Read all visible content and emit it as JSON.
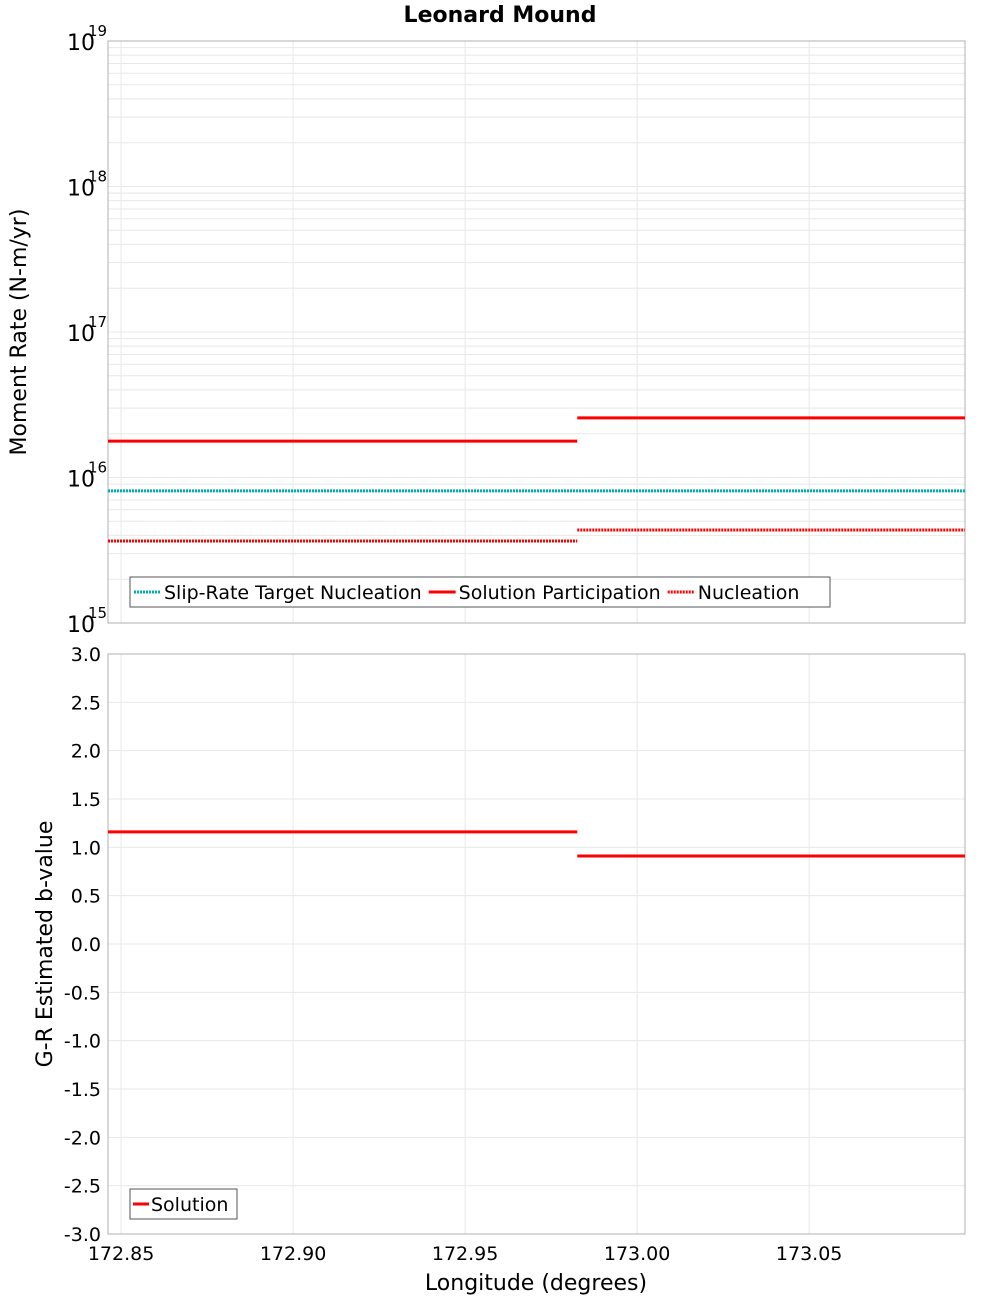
{
  "chart_data": [
    {
      "type": "line",
      "title": "Leonard Mound",
      "xlabel": "Longitude (degrees)",
      "ylabel": "Moment Rate (N-m/yr)",
      "yscale": "log",
      "ylim": [
        1000000000000000.0,
        1e+19
      ],
      "xlim": [
        172.8462,
        173.0953
      ],
      "ytick_labels": [
        {
          "base": "10",
          "exp": "15",
          "value": 1000000000000000.0
        },
        {
          "base": "10",
          "exp": "16",
          "value": 1e+16
        },
        {
          "base": "10",
          "exp": "17",
          "value": 1e+17
        },
        {
          "base": "10",
          "exp": "18",
          "value": 1e+18
        },
        {
          "base": "10",
          "exp": "19",
          "value": 1e+19
        }
      ],
      "grid": true,
      "legend_position": "bottom-left",
      "series": [
        {
          "name": "Slip-Rate Target Nucleation",
          "color": "#00b0b0",
          "style": "dotted",
          "segments": [
            {
              "x": [
                172.8462,
                173.0953
              ],
              "y": 8100000000000000.0
            }
          ]
        },
        {
          "name": "Solution Participation",
          "color": "#ff0000",
          "style": "solid",
          "segments": [
            {
              "x": [
                172.8462,
                172.9826
              ],
              "y": 1.78e+16
            },
            {
              "x": [
                172.9826,
                173.0953
              ],
              "y": 2.57e+16
            }
          ]
        },
        {
          "name": "Nucleation",
          "color": "#ff0000",
          "style": "dotted",
          "segments": [
            {
              "x": [
                172.8462,
                172.9826
              ],
              "y": 3660000000000000.0
            },
            {
              "x": [
                172.9826,
                173.0953
              ],
              "y": 4360000000000000.0
            }
          ]
        }
      ]
    },
    {
      "type": "line",
      "xlabel": "Longitude (degrees)",
      "ylabel": "G-R Estimated b-value",
      "ylim": [
        -3.0,
        3.0
      ],
      "xlim": [
        172.8462,
        173.0953
      ],
      "yticks": [
        "3.0",
        "2.5",
        "2.0",
        "1.5",
        "1.0",
        "0.5",
        "0.0",
        "-0.5",
        "-1.0",
        "-1.5",
        "-2.0",
        "-2.5",
        "-3.0"
      ],
      "xticks": [
        "172.85",
        "172.90",
        "172.95",
        "173.00",
        "173.05"
      ],
      "grid": true,
      "legend_position": "bottom-left",
      "series": [
        {
          "name": "Solution",
          "color": "#ff0000",
          "style": "solid",
          "segments": [
            {
              "x": [
                172.8462,
                172.9826
              ],
              "y": 1.16
            },
            {
              "x": [
                172.9826,
                173.0953
              ],
              "y": 0.91
            }
          ]
        }
      ]
    }
  ]
}
